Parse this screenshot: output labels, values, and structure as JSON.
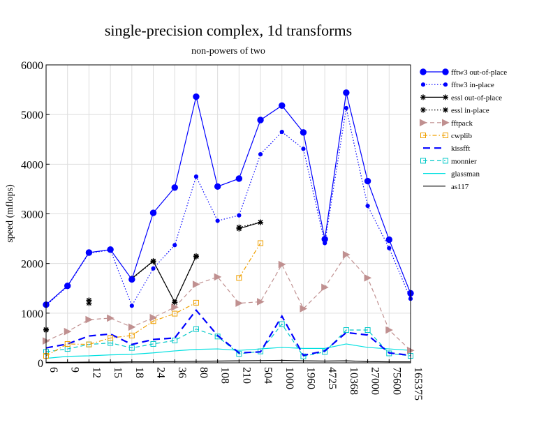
{
  "chart_data": {
    "type": "line",
    "title": "single-precision complex, 1d transforms",
    "subtitle": "non-powers of two",
    "xlabel": "",
    "ylabel": "speed (mflops)",
    "ylim": [
      0,
      6000
    ],
    "yticks": [
      0,
      1000,
      2000,
      3000,
      4000,
      5000,
      6000
    ],
    "grid": true,
    "legend_position": "right",
    "categories": [
      "6",
      "9",
      "12",
      "15",
      "18",
      "24",
      "36",
      "80",
      "108",
      "210",
      "504",
      "1000",
      "1960",
      "4725",
      "10368",
      "27000",
      "75600",
      "165375"
    ],
    "series": [
      {
        "name": "fftw3 out-of-place",
        "color": "#0000ff",
        "line": "solid",
        "marker": "circle-big",
        "values": [
          1170,
          1550,
          2220,
          2280,
          1680,
          3020,
          3530,
          5360,
          3550,
          3710,
          4890,
          5180,
          4640,
          2490,
          5440,
          3660,
          2480,
          1400
        ]
      },
      {
        "name": "fftw3 in-place",
        "color": "#0000ff",
        "line": "dotted",
        "marker": "circle-small",
        "values": [
          1150,
          1540,
          2210,
          2270,
          1150,
          1900,
          2370,
          3750,
          2860,
          2970,
          4200,
          4650,
          4310,
          2410,
          5130,
          3160,
          2310,
          1290
        ]
      },
      {
        "name": "essl out-of-place",
        "color": "#000000",
        "line": "solid",
        "marker": "star",
        "values": [
          670,
          null,
          1260,
          null,
          1700,
          2050,
          1220,
          2150,
          null,
          2700,
          2830,
          null,
          null,
          null,
          null,
          null,
          null,
          null
        ]
      },
      {
        "name": "essl in-place",
        "color": "#000000",
        "line": "dotted",
        "marker": "star",
        "values": [
          660,
          null,
          1200,
          null,
          1690,
          2040,
          1220,
          2140,
          null,
          2730,
          2830,
          null,
          null,
          null,
          null,
          null,
          null,
          null
        ]
      },
      {
        "name": "fftpack",
        "color": "#c09090",
        "line": "dashed",
        "marker": "triangle",
        "values": [
          440,
          630,
          870,
          900,
          720,
          910,
          1120,
          1580,
          1730,
          1200,
          1230,
          1980,
          1090,
          1520,
          2180,
          1710,
          660,
          250
        ]
      },
      {
        "name": "cwplib",
        "color": "#f0a000",
        "line": "dashdot",
        "marker": "square",
        "values": [
          140,
          380,
          370,
          500,
          550,
          840,
          990,
          1210,
          null,
          1710,
          2410,
          null,
          null,
          null,
          null,
          null,
          null,
          null
        ]
      },
      {
        "name": "kissfft",
        "color": "#0000ff",
        "line": "longdash",
        "marker": "none",
        "values": [
          300,
          380,
          540,
          580,
          370,
          470,
          500,
          1060,
          550,
          200,
          220,
          940,
          150,
          240,
          610,
          560,
          200,
          150
        ]
      },
      {
        "name": "monnier",
        "color": "#00c8c8",
        "line": "dashed",
        "marker": "square",
        "values": [
          220,
          280,
          370,
          400,
          300,
          380,
          450,
          680,
          530,
          180,
          230,
          780,
          130,
          220,
          660,
          660,
          190,
          140
        ]
      },
      {
        "name": "glassman",
        "color": "#00e0e0",
        "line": "solid",
        "marker": "none",
        "values": [
          90,
          130,
          140,
          160,
          170,
          200,
          240,
          270,
          280,
          250,
          280,
          310,
          290,
          290,
          380,
          310,
          280,
          250
        ]
      },
      {
        "name": "as117",
        "color": "#000000",
        "line": "solid",
        "marker": "none",
        "values": [
          10,
          10,
          15,
          15,
          20,
          20,
          25,
          30,
          35,
          40,
          45,
          50,
          40,
          35,
          40,
          25,
          20,
          20
        ]
      }
    ]
  }
}
